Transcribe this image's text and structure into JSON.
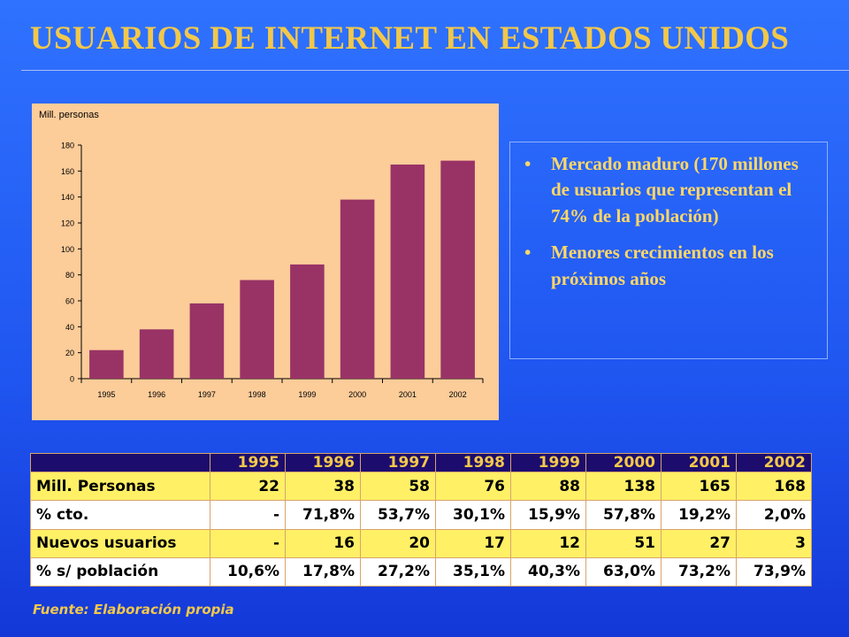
{
  "title": "USUARIOS DE INTERNET EN ESTADOS UNIDOS",
  "chart_data": {
    "type": "bar",
    "title": "",
    "ylabel": "Mill. personas",
    "xlabel": "",
    "categories": [
      "1995",
      "1996",
      "1997",
      "1998",
      "1999",
      "2000",
      "2001",
      "2002"
    ],
    "values": [
      22,
      38,
      58,
      76,
      88,
      138,
      165,
      168
    ],
    "ylim": [
      0,
      180
    ],
    "yticks": [
      0,
      20,
      40,
      60,
      80,
      100,
      120,
      140,
      160,
      180
    ],
    "grid": false,
    "legend": "none",
    "bar_color": "#993366",
    "background": "#fccc99"
  },
  "bullets": [
    "Mercado maduro (170 millones de usuarios que representan el 74% de la población)",
    "Menores crecimientos en los próximos años"
  ],
  "bullet_glyph": "•",
  "table": {
    "years": [
      "1995",
      "1996",
      "1997",
      "1998",
      "1999",
      "2000",
      "2001",
      "2002"
    ],
    "rows": [
      {
        "label": "Mill. Personas",
        "values": [
          "22",
          "38",
          "58",
          "76",
          "88",
          "138",
          "165",
          "168"
        ]
      },
      {
        "label": "% cto.",
        "values": [
          "-",
          "71,8%",
          "53,7%",
          "30,1%",
          "15,9%",
          "57,8%",
          "19,2%",
          "2,0%"
        ]
      },
      {
        "label": "Nuevos usuarios",
        "values": [
          "-",
          "16",
          "20",
          "17",
          "12",
          "51",
          "27",
          "3"
        ]
      },
      {
        "label": "% s/ población",
        "values": [
          "10,6%",
          "17,8%",
          "27,2%",
          "35,1%",
          "40,3%",
          "63,0%",
          "73,2%",
          "73,9%"
        ]
      }
    ]
  },
  "source": "Fuente: Elaboración propia",
  "colors": {
    "title": "#f2c84a",
    "bullet_text": "#ffd766",
    "table_header_bg": "#1c0c6e",
    "table_header_text": "#f4c84a"
  }
}
